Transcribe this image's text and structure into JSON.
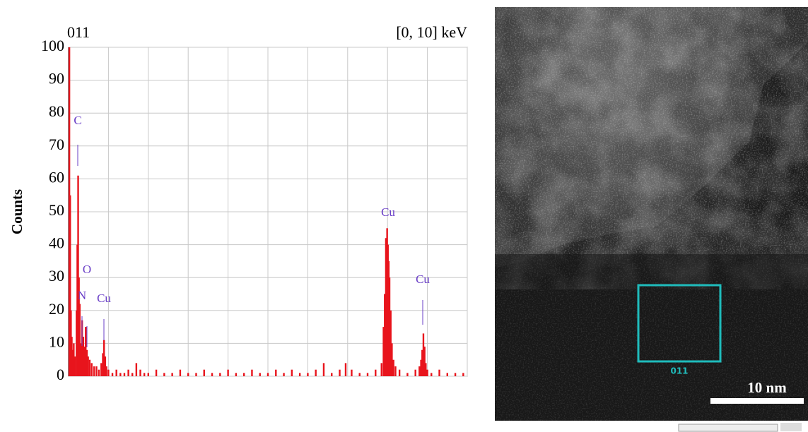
{
  "chart_data": {
    "type": "bar",
    "title": "011",
    "subtitle": "[0, 10] keV",
    "y_label": "Counts",
    "color": "#e8141c",
    "grid": true,
    "xlim": [
      0,
      10
    ],
    "xticks": [
      0,
      1,
      2,
      3,
      4,
      5,
      6,
      7,
      8,
      9,
      10
    ],
    "ylim": [
      0,
      100
    ],
    "yticks": [
      0,
      10,
      20,
      30,
      40,
      50,
      60,
      70,
      80,
      90,
      100
    ],
    "annotations": [
      "C",
      "O",
      "N",
      "Cu",
      "Cu",
      "Cu"
    ],
    "x": [
      0.02,
      0.04,
      0.06,
      0.08,
      0.1,
      0.13,
      0.16,
      0.2,
      0.22,
      0.24,
      0.26,
      0.28,
      0.31,
      0.34,
      0.37,
      0.4,
      0.43,
      0.46,
      0.49,
      0.53,
      0.58,
      0.64,
      0.7,
      0.76,
      0.82,
      0.86,
      0.89,
      0.92,
      0.95,
      1.0,
      1.1,
      1.2,
      1.3,
      1.4,
      1.5,
      1.6,
      1.7,
      1.8,
      1.9,
      2.0,
      2.2,
      2.4,
      2.6,
      2.8,
      3.0,
      3.2,
      3.4,
      3.6,
      3.8,
      4.0,
      4.2,
      4.4,
      4.6,
      4.8,
      5.0,
      5.2,
      5.4,
      5.6,
      5.8,
      6.0,
      6.2,
      6.4,
      6.6,
      6.8,
      6.95,
      7.1,
      7.3,
      7.5,
      7.7,
      7.85,
      7.9,
      7.93,
      7.96,
      7.99,
      8.01,
      8.03,
      8.05,
      8.08,
      8.11,
      8.15,
      8.2,
      8.3,
      8.5,
      8.7,
      8.8,
      8.84,
      8.87,
      8.9,
      8.93,
      8.96,
      9.0,
      9.1,
      9.3,
      9.5,
      9.7,
      9.9
    ],
    "values": [
      100,
      55,
      20,
      12,
      8,
      10,
      6,
      20,
      40,
      61,
      30,
      22,
      10,
      17,
      12,
      9,
      15,
      8,
      6,
      5,
      4,
      3,
      3,
      2,
      4,
      7,
      11,
      6,
      3,
      2,
      1,
      2,
      1,
      1,
      2,
      1,
      4,
      2,
      1,
      1,
      2,
      1,
      1,
      2,
      1,
      1,
      2,
      1,
      1,
      2,
      1,
      1,
      2,
      1,
      1,
      2,
      1,
      2,
      1,
      1,
      2,
      4,
      1,
      2,
      4,
      2,
      1,
      1,
      2,
      4,
      15,
      25,
      42,
      45,
      40,
      35,
      30,
      20,
      10,
      5,
      3,
      2,
      1,
      2,
      3,
      5,
      8,
      13,
      9,
      4,
      2,
      1,
      2,
      1,
      1,
      1
    ]
  },
  "image": {
    "roi_label": "011",
    "scale_bar": "10 nm"
  }
}
